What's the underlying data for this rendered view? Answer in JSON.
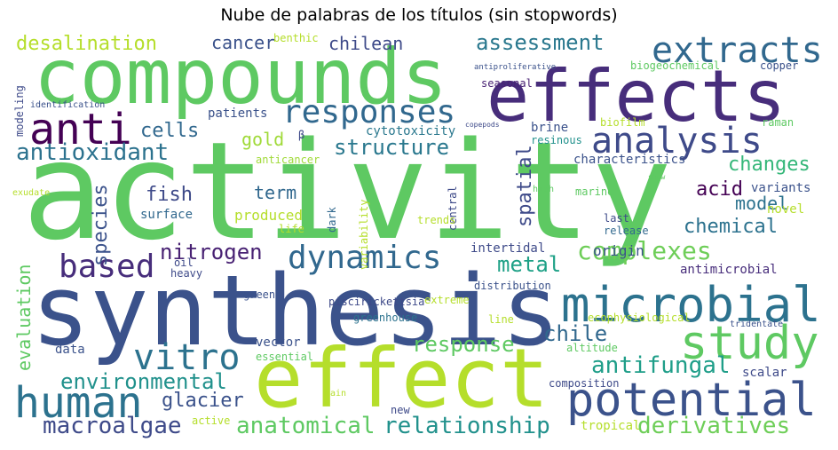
{
  "chart_data": {
    "type": "wordcloud",
    "title": "Nube de palabras de los títulos (sin stopwords)",
    "background": "#ffffff",
    "words": [
      {
        "text": "activity",
        "color": "#5ec962"
      },
      {
        "text": "synthesis",
        "color": "#3b528b"
      },
      {
        "text": "compounds",
        "color": "#5ec962"
      },
      {
        "text": "effects",
        "color": "#472d7b"
      },
      {
        "text": "effect",
        "color": "#b5de2b"
      },
      {
        "text": "microbial",
        "color": "#2c728e"
      },
      {
        "text": "potential",
        "color": "#3b528b"
      },
      {
        "text": "study",
        "color": "#5ec962"
      },
      {
        "text": "extracts",
        "color": "#31688e"
      },
      {
        "text": "analysis",
        "color": "#3e4a89"
      },
      {
        "text": "human",
        "color": "#2c728e"
      },
      {
        "text": "anti",
        "color": "#440154"
      },
      {
        "text": "responses",
        "color": "#31688e"
      },
      {
        "text": "dynamics",
        "color": "#31688e"
      },
      {
        "text": "based",
        "color": "#472d7b"
      },
      {
        "text": "vitro",
        "color": "#2c728e"
      },
      {
        "text": "complexes",
        "color": "#6ece58"
      },
      {
        "text": "antioxidant",
        "color": "#2c728e"
      },
      {
        "text": "environmental",
        "color": "#21918c"
      },
      {
        "text": "anatomical",
        "color": "#5ec962"
      },
      {
        "text": "relationship",
        "color": "#21918c"
      },
      {
        "text": "antifungal",
        "color": "#1f9e89"
      },
      {
        "text": "derivatives",
        "color": "#6ece58"
      },
      {
        "text": "macroalgae",
        "color": "#3e4a89"
      },
      {
        "text": "glacier",
        "color": "#3b528b"
      },
      {
        "text": "response",
        "color": "#5ec962"
      },
      {
        "text": "chile",
        "color": "#31688e"
      },
      {
        "text": "nitrogen",
        "color": "#482173"
      },
      {
        "text": "metal",
        "color": "#1fa187"
      },
      {
        "text": "structure",
        "color": "#2a788e"
      },
      {
        "text": "assessment",
        "color": "#2a788e"
      },
      {
        "text": "desalination",
        "color": "#b5de2b"
      },
      {
        "text": "cancer",
        "color": "#3b528b"
      },
      {
        "text": "chilean",
        "color": "#3e4a89"
      },
      {
        "text": "cells",
        "color": "#31688e"
      },
      {
        "text": "gold",
        "color": "#a0da39"
      },
      {
        "text": "changes",
        "color": "#35b779"
      },
      {
        "text": "acid",
        "color": "#440154"
      },
      {
        "text": "model",
        "color": "#2c728e"
      },
      {
        "text": "chemical",
        "color": "#2c728e"
      },
      {
        "text": "fish",
        "color": "#3e4a89"
      },
      {
        "text": "term",
        "color": "#31688e"
      },
      {
        "text": "species",
        "color": "#3b528b"
      },
      {
        "text": "spatial",
        "color": "#3e4a89"
      },
      {
        "text": "evaluation",
        "color": "#5ec962"
      },
      {
        "text": "cytotoxicity",
        "color": "#2a788e"
      },
      {
        "text": "patients",
        "color": "#3b528b"
      },
      {
        "text": "surface",
        "color": "#31688e"
      },
      {
        "text": "produced",
        "color": "#b5de2b"
      },
      {
        "text": "brine",
        "color": "#3b528b"
      },
      {
        "text": "characteristics",
        "color": "#3b528b"
      },
      {
        "text": "variants",
        "color": "#3b528b"
      },
      {
        "text": "origin",
        "color": "#3b528b"
      },
      {
        "text": "antimicrobial",
        "color": "#472d7b"
      },
      {
        "text": "intertidal",
        "color": "#3e4a89"
      },
      {
        "text": "scalar",
        "color": "#3e4a89"
      },
      {
        "text": "composition",
        "color": "#3e4a89"
      },
      {
        "text": "tropical",
        "color": "#b5de2b"
      },
      {
        "text": "vector",
        "color": "#3b528b"
      },
      {
        "text": "data",
        "color": "#3b528b"
      },
      {
        "text": "modeling",
        "color": "#3e4a89"
      },
      {
        "text": "identification",
        "color": "#3b528b"
      },
      {
        "text": "anticancer",
        "color": "#a0da39"
      },
      {
        "text": "dark",
        "color": "#31688e"
      },
      {
        "text": "variability",
        "color": "#b5de2b"
      },
      {
        "text": "central",
        "color": "#3e4a89"
      },
      {
        "text": "release",
        "color": "#31688e"
      },
      {
        "text": "last",
        "color": "#3e4a89"
      },
      {
        "text": "novel",
        "color": "#b5de2b"
      },
      {
        "text": "marine",
        "color": "#5ec962"
      },
      {
        "text": "high",
        "color": "#5ec962"
      },
      {
        "text": "snow",
        "color": "#5ec962"
      },
      {
        "text": "piscirickettsia",
        "color": "#3e4a89"
      },
      {
        "text": "greenhouse",
        "color": "#2c728e"
      },
      {
        "text": "extreme",
        "color": "#b5de2b"
      },
      {
        "text": "line",
        "color": "#b5de2b"
      },
      {
        "text": "ecophysiological",
        "color": "#b5de2b"
      },
      {
        "text": "altitude",
        "color": "#5ec962"
      },
      {
        "text": "tridentate",
        "color": "#3b528b"
      },
      {
        "text": "seasonal",
        "color": "#482173"
      },
      {
        "text": "copepods",
        "color": "#3e4a89"
      },
      {
        "text": "resinous",
        "color": "#21918c"
      },
      {
        "text": "biofilm",
        "color": "#b5de2b"
      },
      {
        "text": "raman",
        "color": "#5ec962"
      },
      {
        "text": "biogeochemical",
        "color": "#5ec962"
      },
      {
        "text": "copper",
        "color": "#3b528b"
      },
      {
        "text": "antiproliferative",
        "color": "#3b528b"
      },
      {
        "text": "benthic",
        "color": "#b5de2b"
      },
      {
        "text": "β",
        "color": "#3e4a89"
      },
      {
        "text": "exudate",
        "color": "#b5de2b"
      },
      {
        "text": "life",
        "color": "#b5de2b"
      },
      {
        "text": "trends",
        "color": "#b5de2b"
      },
      {
        "text": "oil",
        "color": "#3e4a89"
      },
      {
        "text": "heavy",
        "color": "#3e4a89"
      },
      {
        "text": "green",
        "color": "#3b528b"
      },
      {
        "text": "distribution",
        "color": "#3b528b"
      },
      {
        "text": "essential",
        "color": "#5ec962"
      },
      {
        "text": "main",
        "color": "#b5de2b"
      },
      {
        "text": "active",
        "color": "#b5de2b"
      },
      {
        "text": "new",
        "color": "#3e4a89"
      }
    ]
  }
}
